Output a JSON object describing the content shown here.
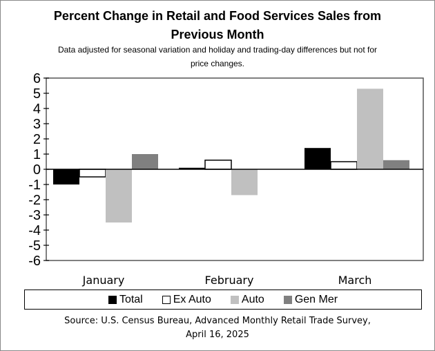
{
  "chart_data": {
    "type": "bar",
    "title": "Percent Change in Retail and Food Services Sales from Previous Month",
    "title_lines": [
      "Percent Change in Retail and Food Services Sales from",
      "Previous Month"
    ],
    "subtitle_lines": [
      "Data adjusted for seasonal variation and holiday and trading-day differences but not for",
      "price changes."
    ],
    "categories": [
      "January",
      "February",
      "March"
    ],
    "series": [
      {
        "name": "Total",
        "color": "#000000",
        "values": [
          -1.0,
          0.1,
          1.4
        ]
      },
      {
        "name": "Ex Auto",
        "color": "#ffffff",
        "values": [
          -0.5,
          0.6,
          0.5
        ]
      },
      {
        "name": "Auto",
        "color": "#c0c0c0",
        "values": [
          -3.5,
          -1.7,
          5.3
        ]
      },
      {
        "name": "Gen Mer",
        "color": "#808080",
        "values": [
          1.0,
          0.0,
          0.6
        ]
      }
    ],
    "ylim": [
      -6,
      6
    ],
    "yticks": [
      "6",
      "5",
      "4",
      "3",
      "2",
      "1",
      "0",
      "-1",
      "-2",
      "-3",
      "-4",
      "-5",
      "-6"
    ],
    "grid": false,
    "legend": "bottom",
    "source_lines": [
      "Source: U.S. Census Bureau, Advanced Monthly Retail Trade Survey,",
      "April 16, 2025"
    ]
  }
}
